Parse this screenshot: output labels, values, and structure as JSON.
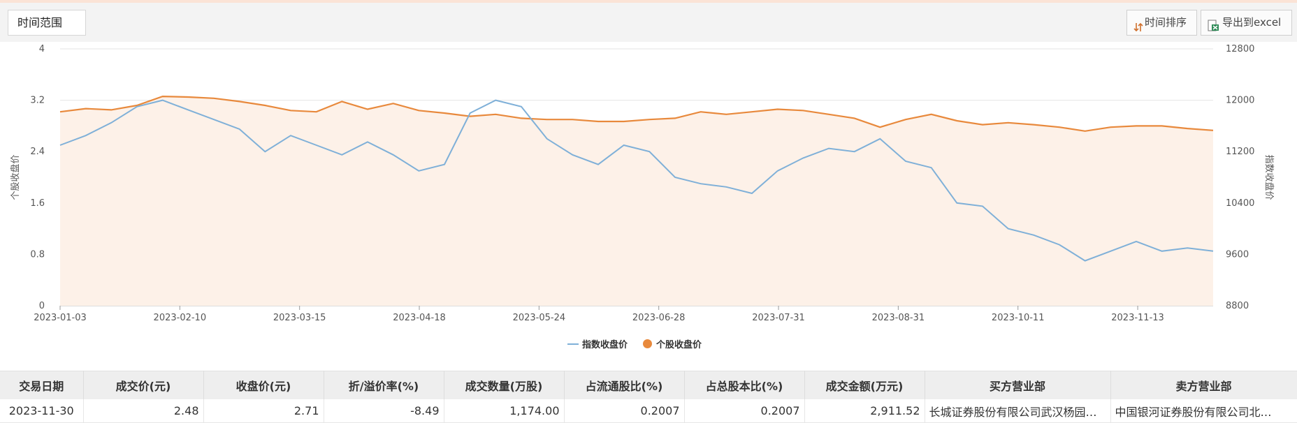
{
  "toolbar": {
    "time_range_label": "时间范围",
    "sort_label": "时间排序",
    "export_label": "导出到excel"
  },
  "chart_data": {
    "type": "line",
    "ylabel_left": "个股收盘价",
    "ylabel_right": "指数收盘价",
    "ylim_left": [
      0,
      4
    ],
    "ylim_right": [
      8800,
      12800
    ],
    "yticks_left": [
      "4",
      "3.2",
      "2.4",
      "1.6",
      "0.8",
      "0"
    ],
    "yticks_right": [
      "12800",
      "12000",
      "11200",
      "10400",
      "9600",
      "8800"
    ],
    "x_tick_labels": [
      "2023-01-03",
      "2023-02-10",
      "2023-03-15",
      "2023-04-18",
      "2023-05-24",
      "2023-06-28",
      "2023-07-31",
      "2023-08-31",
      "2023-10-11",
      "2023-11-13"
    ],
    "grid": true,
    "legend_position": "bottom",
    "colors": {
      "index": "#7fb0d8",
      "stock": "#e8893c",
      "stock_fill": "#fdf1e8"
    },
    "series": [
      {
        "name": "指数收盘价",
        "axis": "right",
        "values": [
          11300,
          11450,
          11650,
          11900,
          12000,
          11850,
          11700,
          11550,
          11200,
          11450,
          11300,
          11150,
          11350,
          11150,
          10900,
          11000,
          11800,
          12000,
          11900,
          11400,
          11150,
          11000,
          11300,
          11200,
          10800,
          10700,
          10650,
          10550,
          10900,
          11100,
          11250,
          11200,
          11400,
          11050,
          10950,
          10400,
          10350,
          10000,
          9900,
          9750,
          9500,
          9650,
          9800,
          9650,
          9700,
          9650
        ]
      },
      {
        "name": "个股收盘价",
        "axis": "left",
        "values": [
          3.02,
          3.07,
          3.05,
          3.12,
          3.26,
          3.25,
          3.23,
          3.18,
          3.12,
          3.04,
          3.02,
          3.18,
          3.06,
          3.15,
          3.04,
          3.0,
          2.95,
          2.98,
          2.92,
          2.9,
          2.9,
          2.87,
          2.87,
          2.9,
          2.92,
          3.02,
          2.98,
          3.02,
          3.06,
          3.04,
          2.98,
          2.92,
          2.78,
          2.9,
          2.98,
          2.88,
          2.82,
          2.85,
          2.82,
          2.78,
          2.72,
          2.78,
          2.8,
          2.8,
          2.76,
          2.73
        ]
      }
    ]
  },
  "table": {
    "headers": [
      "交易日期",
      "成交价(元)",
      "收盘价(元)",
      "折/溢价率(%)",
      "成交数量(万股)",
      "占流通股比(%)",
      "占总股本比(%)",
      "成交金额(万元)",
      "买方营业部",
      "卖方营业部"
    ],
    "rows": [
      [
        "2023-11-30",
        "2.48",
        "2.71",
        "-8.49",
        "1,174.00",
        "0.2007",
        "0.2007",
        "2,911.52",
        "长城证券股份有限公司武汉杨园…",
        "中国银河证券股份有限公司北…"
      ]
    ]
  }
}
